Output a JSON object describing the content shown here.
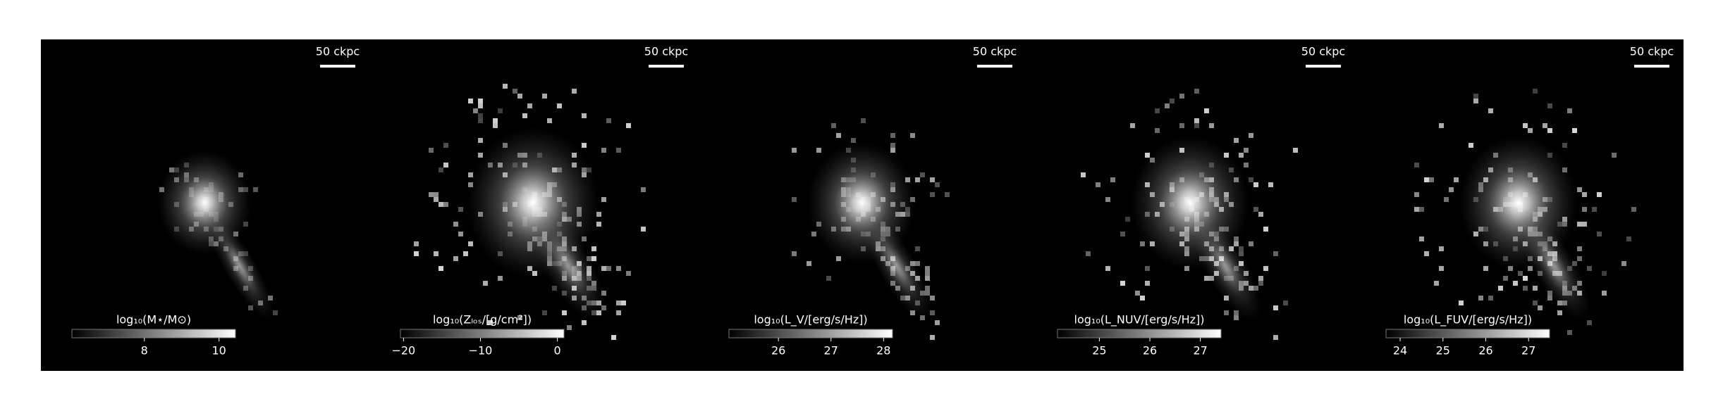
{
  "chart_data": [
    {
      "type": "image",
      "scalebar": "50 ckpc",
      "colorbar_label": "log₁₀(M⋆/M⊙)",
      "clim": [
        6.06,
        10.44
      ],
      "cticks": [
        8,
        10
      ]
    },
    {
      "type": "image",
      "scalebar": "50 ckpc",
      "colorbar_label": "log₁₀(Zₗₒₛ/[g/cm²])",
      "clim": [
        -20.4,
        0.86
      ],
      "cticks": [
        {
          "value": -20,
          "label": "−20"
        },
        {
          "value": -10,
          "label": "−10"
        },
        0
      ]
    },
    {
      "type": "image",
      "scalebar": "50 ckpc",
      "colorbar_label": "log₁₀(L_V/[erg/s/Hz])",
      "clim": [
        25.06,
        28.17
      ],
      "cticks": [
        26,
        27,
        28
      ]
    },
    {
      "type": "image",
      "scalebar": "50 ckpc",
      "colorbar_label": "log₁₀(L_NUV/[erg/s/Hz])",
      "clim": [
        24.17,
        27.41
      ],
      "cticks": [
        25,
        26,
        27
      ]
    },
    {
      "type": "image",
      "scalebar": "50 ckpc",
      "colorbar_label": "log₁₀(L_FUV/[erg/s/Hz])",
      "clim": [
        23.67,
        27.49
      ],
      "cticks": [
        24,
        25,
        26,
        27
      ]
    }
  ]
}
